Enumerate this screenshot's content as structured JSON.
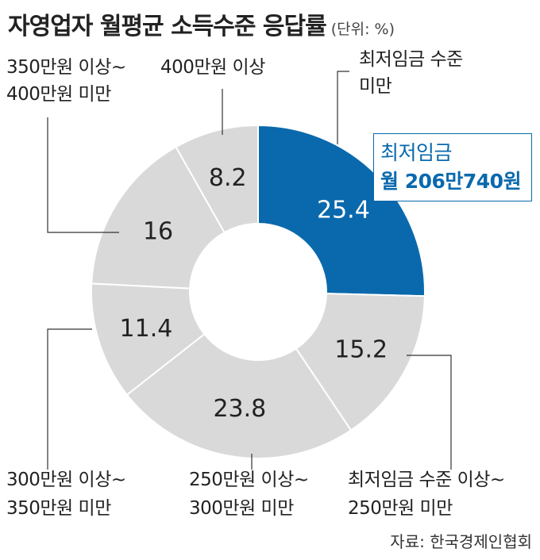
{
  "title": "자영업자 월평균 소득수준 응답률",
  "unit": "(단위: %)",
  "source": "자료: 한국경제인협회",
  "callout": {
    "line1": "최저임금",
    "line2": "월 206만740원"
  },
  "colors": {
    "highlight": "#0a69ad",
    "segment": "#d9d9d9",
    "callout_border": "#0a69ad"
  },
  "chart_data": {
    "type": "pie",
    "title": "자영업자 월평균 소득수준 응답률",
    "unit": "%",
    "categories": [
      "최저임금 수준 미만",
      "최저임금 수준 이상~250만원 미만",
      "250만원 이상~300만원 미만",
      "300만원 이상~350만원 미만",
      "350만원 이상~400만원 미만",
      "400만원 이상"
    ],
    "values": [
      25.4,
      15.2,
      23.8,
      11.4,
      16,
      8.2
    ],
    "value_labels": [
      "25.4",
      "15.2",
      "23.8",
      "11.4",
      "16",
      "8.2"
    ],
    "label_lines": [
      [
        "최저임금 수준",
        "미만"
      ],
      [
        "최저임금 수준 이상~",
        "250만원 미만"
      ],
      [
        "250만원 이상~",
        "300만원 미만"
      ],
      [
        "300만원 이상~",
        "350만원 미만"
      ],
      [
        "350만원 이상~",
        "400만원 미만"
      ],
      [
        "400만원 이상"
      ]
    ],
    "highlight_index": 0,
    "donut": true
  }
}
